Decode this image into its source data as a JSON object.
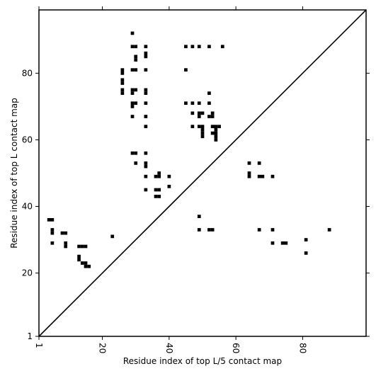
{
  "chart_data": {
    "type": "scatter",
    "title": "",
    "xlabel": "Residue index of top L/5 contact map",
    "ylabel": "Residue index of top L contact map",
    "xlim": [
      1,
      99
    ],
    "ylim": [
      1,
      99
    ],
    "x_ticks": [
      1,
      20,
      40,
      60,
      80
    ],
    "y_ticks": [
      1,
      20,
      40,
      60,
      80
    ],
    "x_tick_labels": [
      "1",
      "20",
      "40",
      "60",
      "80"
    ],
    "y_tick_labels": [
      "1",
      "20",
      "40",
      "60",
      "80"
    ],
    "grid": false,
    "diagonal": true,
    "marker": "square",
    "marker_color": "#000000",
    "line_color": "#000000",
    "series": [
      {
        "name": "",
        "points": [
          [
            4,
            36
          ],
          [
            5,
            36
          ],
          [
            5,
            33
          ],
          [
            5,
            32
          ],
          [
            5,
            29
          ],
          [
            8,
            32
          ],
          [
            9,
            32
          ],
          [
            9,
            29
          ],
          [
            9,
            28
          ],
          [
            13,
            28
          ],
          [
            14,
            28
          ],
          [
            15,
            28
          ],
          [
            13,
            25
          ],
          [
            13,
            24
          ],
          [
            14,
            23
          ],
          [
            15,
            23
          ],
          [
            15,
            22
          ],
          [
            16,
            22
          ],
          [
            23,
            31
          ],
          [
            29,
            92
          ],
          [
            29,
            88
          ],
          [
            30,
            88
          ],
          [
            33,
            88
          ],
          [
            30,
            85
          ],
          [
            30,
            84
          ],
          [
            33,
            86
          ],
          [
            33,
            85
          ],
          [
            26,
            81
          ],
          [
            26,
            80
          ],
          [
            29,
            81
          ],
          [
            30,
            81
          ],
          [
            33,
            81
          ],
          [
            26,
            78
          ],
          [
            26,
            77
          ],
          [
            26,
            75
          ],
          [
            26,
            74
          ],
          [
            29,
            75
          ],
          [
            30,
            75
          ],
          [
            29,
            74
          ],
          [
            33,
            75
          ],
          [
            33,
            74
          ],
          [
            29,
            71
          ],
          [
            30,
            71
          ],
          [
            29,
            70
          ],
          [
            33,
            71
          ],
          [
            29,
            67
          ],
          [
            33,
            67
          ],
          [
            33,
            64
          ],
          [
            29,
            56
          ],
          [
            30,
            56
          ],
          [
            33,
            56
          ],
          [
            30,
            53
          ],
          [
            33,
            53
          ],
          [
            33,
            52
          ],
          [
            33,
            49
          ],
          [
            36,
            49
          ],
          [
            37,
            50
          ],
          [
            37,
            49
          ],
          [
            40,
            49
          ],
          [
            40,
            46
          ],
          [
            33,
            45
          ],
          [
            36,
            45
          ],
          [
            37,
            45
          ],
          [
            36,
            43
          ],
          [
            37,
            43
          ],
          [
            45,
            88
          ],
          [
            47,
            88
          ],
          [
            49,
            88
          ],
          [
            52,
            88
          ],
          [
            56,
            88
          ],
          [
            45,
            81
          ],
          [
            45,
            71
          ],
          [
            47,
            71
          ],
          [
            49,
            71
          ],
          [
            52,
            71
          ],
          [
            52,
            74
          ],
          [
            47,
            68
          ],
          [
            49,
            68
          ],
          [
            50,
            68
          ],
          [
            49,
            67
          ],
          [
            52,
            67
          ],
          [
            53,
            67
          ],
          [
            53,
            68
          ],
          [
            47,
            64
          ],
          [
            49,
            64
          ],
          [
            50,
            64
          ],
          [
            53,
            64
          ],
          [
            54,
            64
          ],
          [
            55,
            64
          ],
          [
            50,
            63
          ],
          [
            50,
            62
          ],
          [
            50,
            61
          ],
          [
            53,
            62
          ],
          [
            54,
            62
          ],
          [
            54,
            61
          ],
          [
            54,
            60
          ],
          [
            54,
            63
          ],
          [
            64,
            53
          ],
          [
            67,
            53
          ],
          [
            64,
            50
          ],
          [
            64,
            49
          ],
          [
            67,
            49
          ],
          [
            68,
            49
          ],
          [
            71,
            49
          ],
          [
            49,
            37
          ],
          [
            49,
            33
          ],
          [
            52,
            33
          ],
          [
            53,
            33
          ],
          [
            67,
            33
          ],
          [
            71,
            33
          ],
          [
            88,
            33
          ],
          [
            71,
            29
          ],
          [
            74,
            29
          ],
          [
            75,
            29
          ],
          [
            81,
            30
          ],
          [
            81,
            26
          ]
        ]
      }
    ]
  }
}
